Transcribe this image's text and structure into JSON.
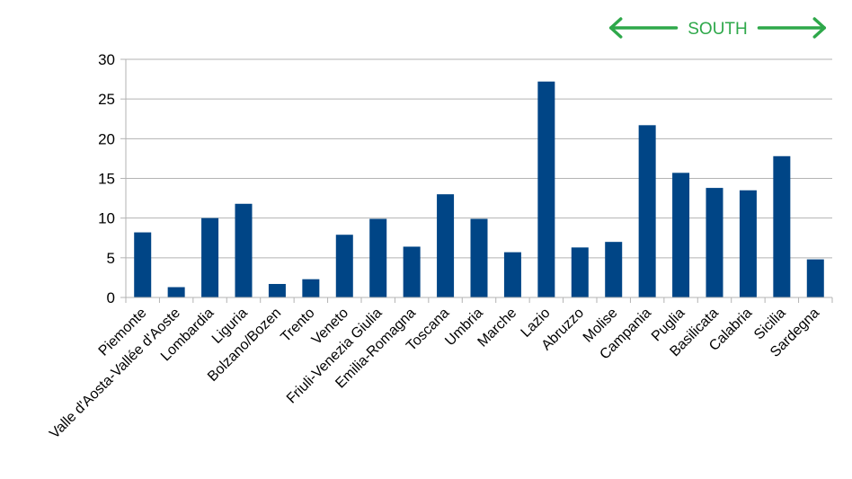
{
  "chart_data": {
    "type": "bar",
    "title": "",
    "xlabel": "",
    "ylabel": "",
    "ylim": [
      0,
      30
    ],
    "yticks": [
      0,
      5,
      10,
      15,
      20,
      25,
      30
    ],
    "grid": true,
    "legend": "none",
    "bar_color": "#004586",
    "categories": [
      "Piemonte",
      "Valle d'Aosta-Vallée d'Aoste",
      "Lombardia",
      "Liguria",
      "Bolzano/Bozen",
      "Trento",
      "Veneto",
      "Friuli-Venezia Giulia",
      "Emilia-Romagna",
      "Toscana",
      "Umbria",
      "Marche",
      "Lazio",
      "Abruzzo",
      "Molise",
      "Campania",
      "Puglia",
      "Basilicata",
      "Calabria",
      "Sicilia",
      "Sardegna"
    ],
    "values": [
      8.2,
      1.3,
      10.0,
      11.8,
      1.7,
      2.3,
      7.9,
      9.9,
      6.4,
      13.0,
      9.9,
      5.7,
      27.2,
      6.3,
      7.0,
      21.7,
      15.7,
      13.8,
      13.5,
      17.8,
      4.8
    ],
    "annotations": [
      {
        "text": "SOUTH",
        "color": "#2ea84a",
        "spans_from_category": "Molise",
        "spans_to_category": "Sardegna"
      }
    ]
  }
}
